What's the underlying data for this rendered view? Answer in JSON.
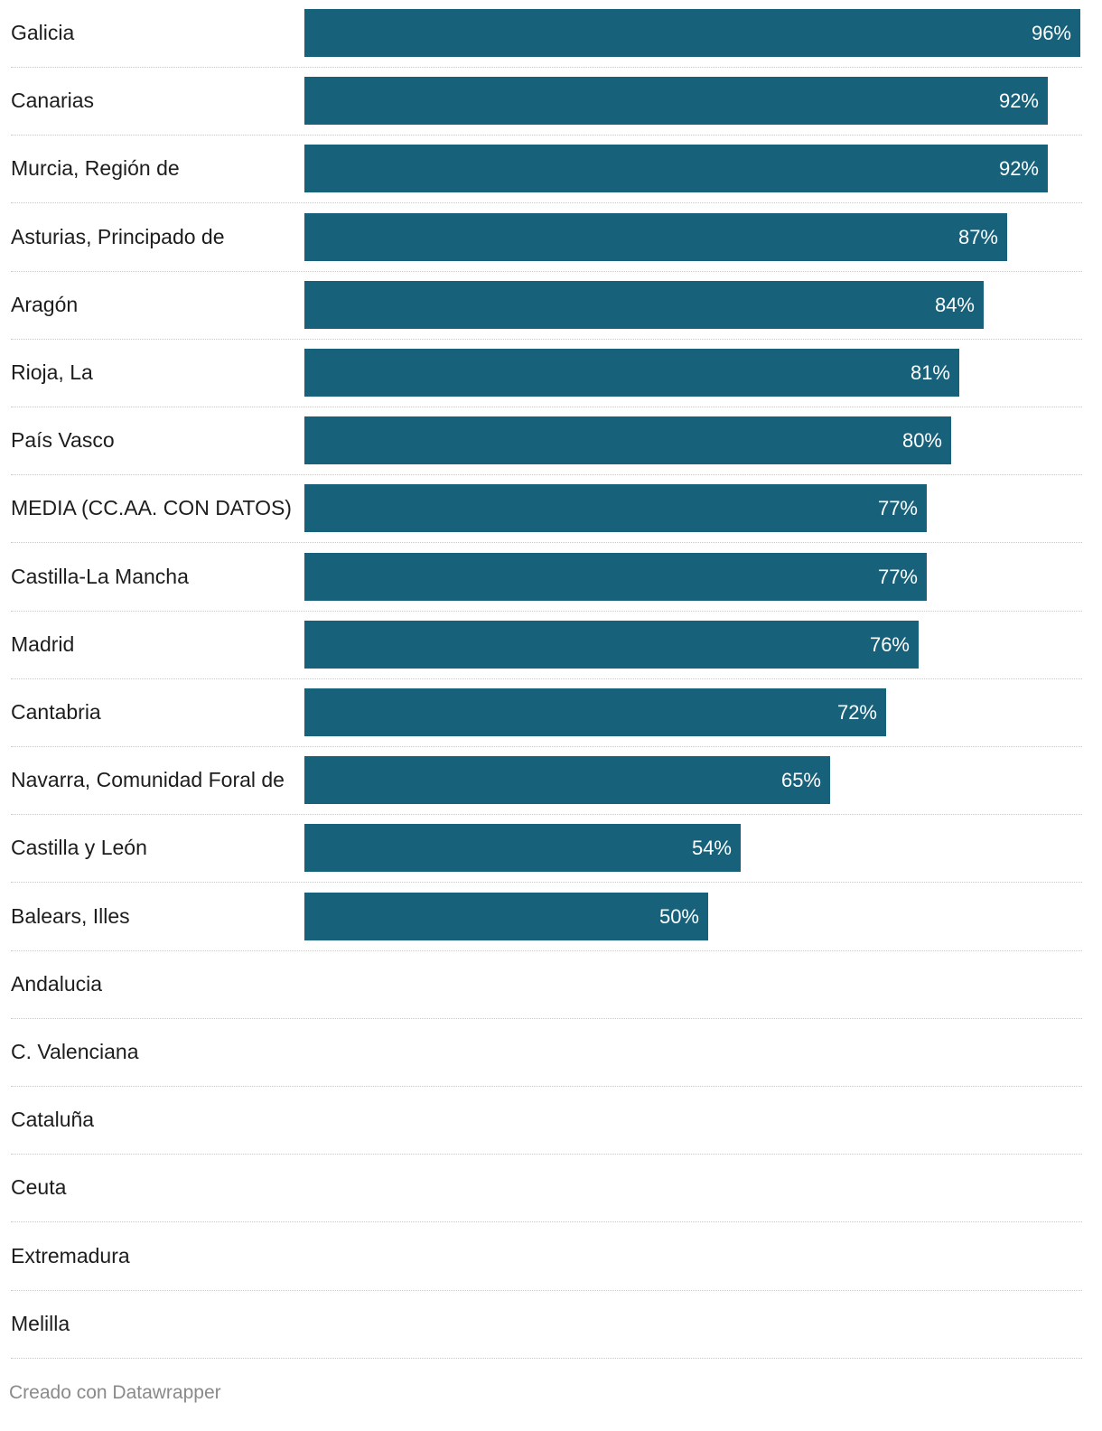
{
  "chart_data": {
    "type": "bar",
    "orientation": "horizontal",
    "categories": [
      "Galicia",
      "Canarias",
      "Murcia, Región de",
      "Asturias, Principado de",
      "Aragón",
      "Rioja, La",
      "País Vasco",
      "MEDIA (CC.AA. CON DATOS)",
      "Castilla-La Mancha",
      "Madrid",
      "Cantabria",
      "Navarra, Comunidad Foral de",
      "Castilla y León",
      "Balears, Illes",
      "Andalucia",
      "C. Valenciana",
      "Cataluña",
      "Ceuta",
      "Extremadura",
      "Melilla"
    ],
    "values": [
      96,
      92,
      92,
      87,
      84,
      81,
      80,
      77,
      77,
      76,
      72,
      65,
      54,
      50,
      null,
      null,
      null,
      null,
      null,
      null
    ],
    "value_labels": [
      "96%",
      "92%",
      "92%",
      "87%",
      "84%",
      "81%",
      "80%",
      "77%",
      "77%",
      "76%",
      "72%",
      "65%",
      "54%",
      "50%",
      "",
      "",
      "",
      "",
      "",
      ""
    ],
    "xlim": [
      0,
      96
    ],
    "color": "#17617a"
  },
  "footer": {
    "credit": "Creado con Datawrapper"
  }
}
